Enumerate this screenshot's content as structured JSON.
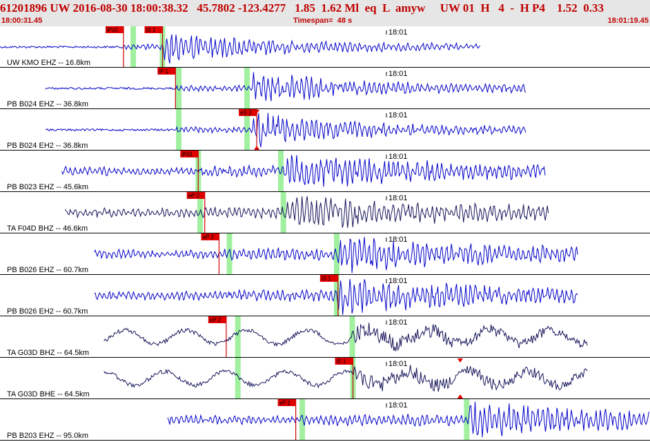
{
  "header": {
    "event_id": "61201896",
    "network": "UW",
    "datetime": "2016-08-30 18:00:38.32",
    "lat": "45.7802",
    "lon": "-123.4277",
    "depth": "1.85",
    "magnitude": "1.62",
    "mag_type": "Ml",
    "event_type": "eq",
    "flag": "L",
    "author": "amyw",
    "quality": "UW 01",
    "h_label": "H",
    "count": "4",
    "dash": "-",
    "h2": "H P4",
    "v1": "1.52",
    "v2": "0.33",
    "start_time": "18:00:31.45",
    "timespan_label": "Timespan=",
    "timespan": "48 s",
    "end_time": "18:01:19.45"
  },
  "time_marker": "18:01",
  "colors": {
    "header_bg": "#e6e6e6",
    "header_text": "#c00000",
    "trace_blue": "#0000c8",
    "trace_navy": "#14145a",
    "pick_line": "#c80000",
    "pick_tag": "#e00000",
    "green_band": "#a0f0a0",
    "separator": "#000000"
  },
  "traces": [
    {
      "label": "UW KMO EHZ -- 16.8km",
      "color": "blue",
      "start": 0.0,
      "end": 0.74,
      "picks": [
        {
          "text": "iPc0",
          "t": 0.19
        },
        {
          "text": "iS 1",
          "t": 0.25
        }
      ],
      "bands": [
        0.205,
        0.25
      ],
      "triangle": null,
      "style": "burst",
      "onset": 0.19,
      "s_onset": 0.25
    },
    {
      "label": "PB B024 EHZ -- 36.8km",
      "color": "blue",
      "start": 0.07,
      "end": 0.81,
      "picks": [
        {
          "text": "iP 1",
          "t": 0.27
        }
      ],
      "bands": [
        0.275,
        0.38
      ],
      "triangle": null,
      "style": "burst",
      "onset": 0.27,
      "s_onset": 0.39
    },
    {
      "label": "PB B024 EH2 -- 36.8km",
      "color": "blue",
      "start": 0.07,
      "end": 0.81,
      "picks": [
        {
          "text": "eS 2",
          "t": 0.395
        }
      ],
      "bands": [
        0.275,
        0.38
      ],
      "triangle": 0.395,
      "style": "burst",
      "onset": 0.27,
      "s_onset": 0.39
    },
    {
      "label": "PB B023 EHZ -- 45.6km",
      "color": "blue",
      "start": 0.095,
      "end": 0.84,
      "picks": [
        {
          "text": "iPd1",
          "t": 0.305
        }
      ],
      "bands": [
        0.305,
        0.432
      ],
      "triangle": null,
      "style": "noisy",
      "onset": 0.305,
      "s_onset": 0.44
    },
    {
      "label": "TA F04D BHZ -- 46.6km",
      "color": "navy",
      "start": 0.1,
      "end": 0.845,
      "picks": [
        {
          "text": "eP 2",
          "t": 0.315
        }
      ],
      "bands": [
        0.308,
        0.436
      ],
      "triangle": null,
      "style": "noisy",
      "onset": 0.31,
      "s_onset": 0.44
    },
    {
      "label": "PB B026 EHZ -- 60.7km",
      "color": "blue",
      "start": 0.145,
      "end": 0.89,
      "picks": [
        {
          "text": "eP 2",
          "t": 0.337
        }
      ],
      "bands": [
        0.353,
        0.518
      ],
      "triangle": null,
      "style": "noisy",
      "onset": 0.337,
      "s_onset": 0.52
    },
    {
      "label": "PB B026 EH2 -- 60.7km",
      "color": "blue",
      "start": 0.145,
      "end": 0.89,
      "picks": [
        {
          "text": "iS 1",
          "t": 0.52
        }
      ],
      "bands": [
        0.518
      ],
      "triangle": null,
      "style": "noisy",
      "onset": 0.35,
      "s_onset": 0.52
    },
    {
      "label": "TA G03D BHZ -- 64.5km",
      "color": "navy",
      "start": 0.16,
      "end": 0.905,
      "picks": [
        {
          "text": "eP 2",
          "t": 0.348
        }
      ],
      "bands": [
        0.366,
        0.542
      ],
      "triangle": null,
      "style": "wavy",
      "onset": 0.35,
      "s_onset": 0.54
    },
    {
      "label": "TA G03D BHE -- 64.5km",
      "color": "navy",
      "start": 0.16,
      "end": 0.905,
      "picks": [
        {
          "text": "iS 1",
          "t": 0.543
        }
      ],
      "bands": [
        0.366,
        0.543
      ],
      "triangle": 0.708,
      "style": "wavy",
      "onset": 0.35,
      "s_onset": 0.545
    },
    {
      "label": "PB B203 EHZ -- 95.0km",
      "color": "blue",
      "start": 0.258,
      "end": 1.0,
      "picks": [
        {
          "text": "eP 2",
          "t": 0.455
        }
      ],
      "bands": [
        0.465,
        0.718
      ],
      "triangle": null,
      "style": "noisy",
      "onset": 0.455,
      "s_onset": 0.72
    }
  ]
}
